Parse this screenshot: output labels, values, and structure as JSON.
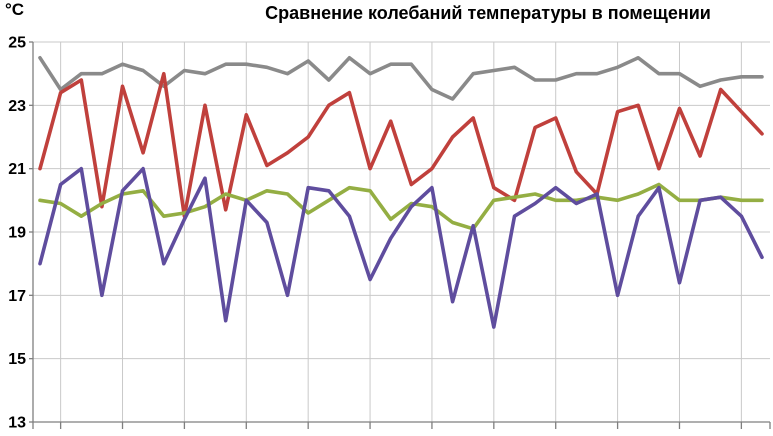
{
  "chart_data": {
    "type": "line",
    "title": "Сравнение колебаний температуры в помещении",
    "y_unit": "°C",
    "xlabel": "",
    "ylabel": "",
    "ylim": [
      13,
      25
    ],
    "yticks": [
      13,
      15,
      17,
      19,
      21,
      23,
      25
    ],
    "grid": true,
    "legend": "none",
    "x_gridline_every": 3,
    "series": [
      {
        "name": "gray-line",
        "color": "#8A8A8A",
        "values": [
          24.5,
          23.5,
          24.0,
          24.0,
          24.3,
          24.1,
          23.6,
          24.1,
          24.0,
          24.3,
          24.3,
          24.2,
          24.0,
          24.4,
          23.8,
          24.5,
          24.0,
          24.3,
          24.3,
          23.5,
          23.2,
          24.0,
          24.1,
          24.2,
          23.8,
          23.8,
          24.0,
          24.0,
          24.2,
          24.5,
          24.0,
          24.0,
          23.6,
          23.8,
          23.9,
          23.9
        ]
      },
      {
        "name": "red-line",
        "color": "#C0403C",
        "values": [
          21.0,
          23.4,
          23.8,
          19.8,
          23.6,
          21.5,
          24.0,
          19.5,
          23.0,
          19.7,
          22.7,
          21.1,
          21.5,
          22.0,
          23.0,
          23.4,
          21.0,
          22.5,
          20.5,
          21.0,
          22.0,
          22.6,
          20.4,
          20.0,
          22.3,
          22.6,
          20.9,
          20.2,
          22.8,
          23.0,
          21.0,
          22.9,
          21.4,
          23.5,
          22.8,
          22.1
        ]
      },
      {
        "name": "green-line",
        "color": "#94AE43",
        "values": [
          20.0,
          19.9,
          19.5,
          19.9,
          20.2,
          20.3,
          19.5,
          19.6,
          19.8,
          20.2,
          20.0,
          20.3,
          20.2,
          19.6,
          20.0,
          20.4,
          20.3,
          19.4,
          19.9,
          19.8,
          19.3,
          19.1,
          20.0,
          20.1,
          20.2,
          20.0,
          20.0,
          20.1,
          20.0,
          20.2,
          20.5,
          20.0,
          20.0,
          20.1,
          20.0,
          20.0
        ]
      },
      {
        "name": "purple-line",
        "color": "#5F4D9E",
        "values": [
          18.0,
          20.5,
          21.0,
          17.0,
          20.3,
          21.0,
          18.0,
          19.4,
          20.7,
          16.2,
          20.0,
          19.3,
          17.0,
          20.4,
          20.3,
          19.5,
          17.5,
          18.8,
          19.8,
          20.4,
          16.8,
          19.2,
          16.0,
          19.5,
          19.9,
          20.4,
          19.9,
          20.2,
          17.0,
          19.5,
          20.4,
          17.4,
          20.0,
          20.1,
          19.5,
          18.2
        ]
      }
    ]
  },
  "colors": {
    "grid": "#C9C9C9",
    "axis": "#7F7F7F",
    "text": "#000000",
    "background": "#FFFFFF"
  }
}
